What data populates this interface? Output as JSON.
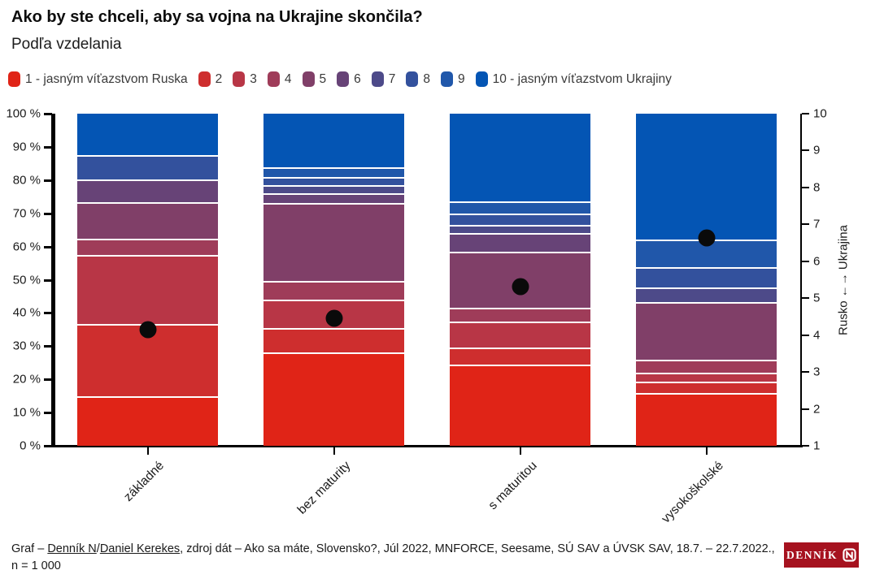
{
  "header": {
    "title": "Ako by ste chceli, aby sa vojna na Ukrajine skončila?",
    "subtitle": "Podľa vzdelania"
  },
  "legend": {
    "items": [
      {
        "label": "1 - jasným víťazstvom Ruska",
        "color": "#e02417"
      },
      {
        "label": "2",
        "color": "#ce2e2e"
      },
      {
        "label": "3",
        "color": "#b83646"
      },
      {
        "label": "4",
        "color": "#9f3c59"
      },
      {
        "label": "5",
        "color": "#803f68"
      },
      {
        "label": "6",
        "color": "#674377"
      },
      {
        "label": "7",
        "color": "#4d4a89"
      },
      {
        "label": "8",
        "color": "#33519d"
      },
      {
        "label": "9",
        "color": "#2057aa"
      },
      {
        "label": "10 - jasným víťazstvom Ukrajiny",
        "color": "#0455b4"
      }
    ]
  },
  "chart_data": {
    "type": "bar",
    "variant": "100pct-stacked-vertical",
    "categories": [
      "základné",
      "bez maturity",
      "s maturitou",
      "vysokoškolské"
    ],
    "series": [
      {
        "name": "1 - jasným víťazstvom Ruska",
        "color": "#e02417",
        "values": [
          15,
          29,
          25,
          16
        ]
      },
      {
        "name": "2",
        "color": "#ce2e2e",
        "values": [
          22,
          7,
          5,
          3
        ]
      },
      {
        "name": "3",
        "color": "#b83646",
        "values": [
          21,
          8.5,
          7.5,
          2.5
        ]
      },
      {
        "name": "4",
        "color": "#9f3c59",
        "values": [
          4.5,
          5.5,
          4,
          3.5
        ]
      },
      {
        "name": "5",
        "color": "#803f68",
        "values": [
          11,
          24,
          17,
          17.5
        ]
      },
      {
        "name": "6",
        "color": "#674377",
        "values": [
          6.5,
          2.5,
          5.5,
          0
        ]
      },
      {
        "name": "7",
        "color": "#4d4a89",
        "values": [
          0,
          2,
          2,
          4
        ]
      },
      {
        "name": "8",
        "color": "#33519d",
        "values": [
          7,
          2,
          3,
          6
        ]
      },
      {
        "name": "9",
        "color": "#2057aa",
        "values": [
          0,
          2.5,
          3.5,
          8
        ]
      },
      {
        "name": "10 - jasným víťazstvom Ukrajiny",
        "color": "#0455b4",
        "values": [
          13,
          17,
          27.5,
          39.5
        ]
      }
    ],
    "mean_dots": {
      "description": "black dot = mean on 1-10 scale, plotted against right axis",
      "values": [
        4.2,
        4.5,
        5.3,
        6.6
      ],
      "percent_position": [
        35,
        38.5,
        48,
        62.5
      ]
    },
    "left_axis": {
      "ticks": [
        "0 %",
        "10 %",
        "20 %",
        "30 %",
        "40 %",
        "50 %",
        "60 %",
        "70 %",
        "80 %",
        "90 %",
        "100 %"
      ],
      "range": [
        0,
        100
      ]
    },
    "right_axis": {
      "ticks": [
        "1",
        "2",
        "3",
        "4",
        "5",
        "6",
        "7",
        "8",
        "9",
        "10"
      ],
      "label": "Rusko ←→ Ukrajina",
      "range": [
        1,
        10
      ]
    },
    "grid": false,
    "legend_position": "top"
  },
  "caption": {
    "prefix": "Graf – ",
    "link1": "Denník N",
    "slash": "/",
    "link2": "Daniel Kerekes",
    "rest": ", zdroj dát – Ako sa máte, Slovensko?, Júl 2022, MNFORCE, Seesame, SÚ SAV a ÚVSK SAV, 18.7. – 22.7.2022., n = 1 000"
  },
  "logo": {
    "text": "DENNÍK",
    "n_glyph": "N",
    "background": "#a6121f"
  }
}
